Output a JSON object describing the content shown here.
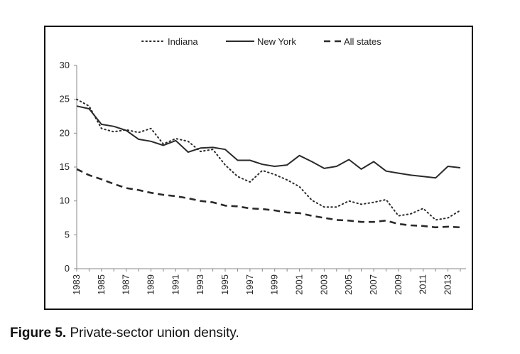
{
  "chart_data": {
    "type": "line",
    "title": "",
    "xlabel": "",
    "ylabel": "",
    "ylim": [
      0,
      30
    ],
    "yticks": [
      0,
      5,
      10,
      15,
      20,
      25,
      30
    ],
    "xlim": [
      1983,
      2014
    ],
    "xticks": [
      "1983",
      "1985",
      "1987",
      "1989",
      "1991",
      "1993",
      "1995",
      "1997",
      "1999",
      "2001",
      "2003",
      "2005",
      "2007",
      "2009",
      "2011",
      "2013"
    ],
    "grid": false,
    "legend_position": "top",
    "x": [
      1983,
      1984,
      1985,
      1986,
      1987,
      1988,
      1989,
      1990,
      1991,
      1992,
      1993,
      1994,
      1995,
      1996,
      1997,
      1998,
      1999,
      2000,
      2001,
      2002,
      2003,
      2004,
      2005,
      2006,
      2007,
      2008,
      2009,
      2010,
      2011,
      2012,
      2013,
      2014
    ],
    "series": [
      {
        "name": "Indiana",
        "style": "dotted",
        "values": [
          25.0,
          24.0,
          20.7,
          20.2,
          20.5,
          20.1,
          20.7,
          18.4,
          19.2,
          18.8,
          17.3,
          17.6,
          15.3,
          13.6,
          12.8,
          14.5,
          13.9,
          13.1,
          12.1,
          10.1,
          9.1,
          9.1,
          10.0,
          9.5,
          9.8,
          10.2,
          7.8,
          8.1,
          8.9,
          7.2,
          7.5,
          8.6
        ]
      },
      {
        "name": "New York",
        "style": "solid",
        "values": [
          24.0,
          23.6,
          21.3,
          21.0,
          20.4,
          19.1,
          18.8,
          18.2,
          18.9,
          17.2,
          17.8,
          17.9,
          17.6,
          16.0,
          16.0,
          15.4,
          15.1,
          15.3,
          16.7,
          15.8,
          14.8,
          15.1,
          16.1,
          14.7,
          15.8,
          14.4,
          14.1,
          13.8,
          13.6,
          13.4,
          15.1,
          14.9
        ]
      },
      {
        "name": "All states",
        "style": "dashed",
        "values": [
          14.7,
          13.8,
          13.2,
          12.5,
          11.9,
          11.6,
          11.2,
          10.9,
          10.7,
          10.4,
          10.0,
          9.8,
          9.3,
          9.2,
          8.9,
          8.8,
          8.6,
          8.3,
          8.2,
          7.8,
          7.5,
          7.2,
          7.1,
          6.9,
          6.9,
          7.1,
          6.6,
          6.4,
          6.3,
          6.1,
          6.2,
          6.1
        ]
      }
    ]
  },
  "caption": {
    "label": "Figure 5.",
    "text": " Private-sector union density."
  }
}
